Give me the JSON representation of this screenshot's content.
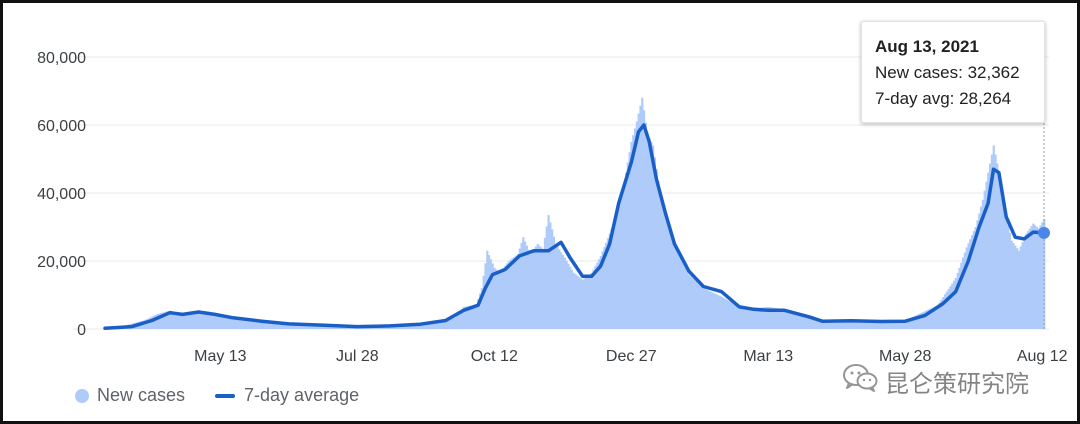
{
  "chart_data": {
    "type": "bar+line",
    "title": "",
    "xlabel": "",
    "ylabel": "",
    "ylim": [
      0,
      90000
    ],
    "y_ticks": [
      0,
      20000,
      40000,
      60000,
      80000
    ],
    "y_tick_labels": [
      "0",
      "20,000",
      "40,000",
      "60,000",
      "80,000"
    ],
    "x_range": [
      "2020-03-10",
      "2021-08-13"
    ],
    "x_ticks": [
      {
        "date": "2020-05-13",
        "label": "May 13"
      },
      {
        "date": "2020-07-28",
        "label": "Jul 28"
      },
      {
        "date": "2020-10-12",
        "label": "Oct 12"
      },
      {
        "date": "2020-12-27",
        "label": "Dec 27"
      },
      {
        "date": "2021-03-13",
        "label": "Mar 13"
      },
      {
        "date": "2021-05-28",
        "label": "May 28"
      },
      {
        "date": "2021-08-12",
        "label": "Aug 12"
      }
    ],
    "grid": true,
    "legend_position": "bottom-left",
    "series": [
      {
        "name": "New cases",
        "kind": "bar",
        "color": "#aecbfa",
        "points": [
          [
            "2020-03-10",
            400
          ],
          [
            "2020-03-20",
            900
          ],
          [
            "2020-04-01",
            2600
          ],
          [
            "2020-04-08",
            4400
          ],
          [
            "2020-04-15",
            5400
          ],
          [
            "2020-04-22",
            4500
          ],
          [
            "2020-05-01",
            5200
          ],
          [
            "2020-05-08",
            4300
          ],
          [
            "2020-05-20",
            3100
          ],
          [
            "2020-06-01",
            2300
          ],
          [
            "2020-06-15",
            1500
          ],
          [
            "2020-07-01",
            1200
          ],
          [
            "2020-07-20",
            500
          ],
          [
            "2020-08-01",
            900
          ],
          [
            "2020-08-20",
            1100
          ],
          [
            "2020-09-05",
            1500
          ],
          [
            "2020-09-20",
            3300
          ],
          [
            "2020-09-25",
            6500
          ],
          [
            "2020-10-02",
            7200
          ],
          [
            "2020-10-05",
            12000
          ],
          [
            "2020-10-08",
            23000
          ],
          [
            "2020-10-12",
            18000
          ],
          [
            "2020-10-15",
            16500
          ],
          [
            "2020-10-20",
            20000
          ],
          [
            "2020-10-25",
            22000
          ],
          [
            "2020-10-28",
            27000
          ],
          [
            "2020-11-01",
            22000
          ],
          [
            "2020-11-05",
            25000
          ],
          [
            "2020-11-08",
            23500
          ],
          [
            "2020-11-11",
            33500
          ],
          [
            "2020-11-15",
            25000
          ],
          [
            "2020-11-20",
            21000
          ],
          [
            "2020-11-25",
            16500
          ],
          [
            "2020-11-30",
            14500
          ],
          [
            "2020-12-05",
            16500
          ],
          [
            "2020-12-10",
            21500
          ],
          [
            "2020-12-15",
            28000
          ],
          [
            "2020-12-19",
            34000
          ],
          [
            "2020-12-23",
            43000
          ],
          [
            "2020-12-27",
            55000
          ],
          [
            "2020-12-30",
            61000
          ],
          [
            "2021-01-02",
            68000
          ],
          [
            "2021-01-05",
            57000
          ],
          [
            "2021-01-08",
            54000
          ],
          [
            "2021-01-12",
            40000
          ],
          [
            "2021-01-17",
            30000
          ],
          [
            "2021-01-22",
            22000
          ],
          [
            "2021-01-28",
            16000
          ],
          [
            "2021-02-05",
            12000
          ],
          [
            "2021-02-15",
            9500
          ],
          [
            "2021-02-25",
            6500
          ],
          [
            "2021-03-05",
            6000
          ],
          [
            "2021-03-13",
            6500
          ],
          [
            "2021-03-25",
            5500
          ],
          [
            "2021-04-05",
            4000
          ],
          [
            "2021-04-12",
            2500
          ],
          [
            "2021-04-25",
            2800
          ],
          [
            "2021-05-10",
            2400
          ],
          [
            "2021-05-28",
            2500
          ],
          [
            "2021-06-05",
            4500
          ],
          [
            "2021-06-15",
            7000
          ],
          [
            "2021-06-25",
            15000
          ],
          [
            "2021-07-01",
            24000
          ],
          [
            "2021-07-06",
            30000
          ],
          [
            "2021-07-10",
            38000
          ],
          [
            "2021-07-13",
            46000
          ],
          [
            "2021-07-16",
            54000
          ],
          [
            "2021-07-19",
            46000
          ],
          [
            "2021-07-22",
            35000
          ],
          [
            "2021-07-26",
            26000
          ],
          [
            "2021-07-30",
            23000
          ],
          [
            "2021-08-03",
            28000
          ],
          [
            "2021-08-07",
            31000
          ],
          [
            "2021-08-10",
            29500
          ],
          [
            "2021-08-13",
            32362
          ]
        ]
      },
      {
        "name": "7-day average",
        "kind": "line",
        "color": "#1a5fc8",
        "points": [
          [
            "2020-03-10",
            200
          ],
          [
            "2020-03-25",
            700
          ],
          [
            "2020-04-05",
            2500
          ],
          [
            "2020-04-15",
            4800
          ],
          [
            "2020-04-22",
            4300
          ],
          [
            "2020-05-01",
            5000
          ],
          [
            "2020-05-10",
            4300
          ],
          [
            "2020-05-20",
            3300
          ],
          [
            "2020-06-05",
            2300
          ],
          [
            "2020-06-20",
            1500
          ],
          [
            "2020-07-10",
            1100
          ],
          [
            "2020-07-28",
            700
          ],
          [
            "2020-08-15",
            900
          ],
          [
            "2020-09-01",
            1400
          ],
          [
            "2020-09-15",
            2500
          ],
          [
            "2020-09-25",
            5500
          ],
          [
            "2020-10-03",
            7000
          ],
          [
            "2020-10-07",
            12000
          ],
          [
            "2020-10-11",
            16000
          ],
          [
            "2020-10-18",
            17500
          ],
          [
            "2020-10-26",
            21500
          ],
          [
            "2020-11-03",
            23000
          ],
          [
            "2020-11-11",
            23000
          ],
          [
            "2020-11-18",
            25500
          ],
          [
            "2020-11-23",
            21000
          ],
          [
            "2020-11-30",
            15500
          ],
          [
            "2020-12-05",
            15500
          ],
          [
            "2020-12-10",
            18500
          ],
          [
            "2020-12-15",
            25000
          ],
          [
            "2020-12-20",
            37000
          ],
          [
            "2020-12-27",
            49000
          ],
          [
            "2020-12-31",
            58000
          ],
          [
            "2021-01-03",
            60000
          ],
          [
            "2021-01-06",
            55000
          ],
          [
            "2021-01-10",
            44000
          ],
          [
            "2021-01-15",
            34000
          ],
          [
            "2021-01-20",
            25000
          ],
          [
            "2021-01-28",
            17000
          ],
          [
            "2021-02-05",
            12500
          ],
          [
            "2021-02-15",
            11000
          ],
          [
            "2021-02-25",
            6500
          ],
          [
            "2021-03-05",
            5800
          ],
          [
            "2021-03-13",
            5500
          ],
          [
            "2021-03-22",
            5500
          ],
          [
            "2021-04-05",
            3500
          ],
          [
            "2021-04-12",
            2300
          ],
          [
            "2021-04-28",
            2400
          ],
          [
            "2021-05-15",
            2200
          ],
          [
            "2021-05-28",
            2300
          ],
          [
            "2021-06-08",
            4000
          ],
          [
            "2021-06-18",
            7500
          ],
          [
            "2021-06-25",
            11000
          ],
          [
            "2021-07-02",
            20000
          ],
          [
            "2021-07-08",
            30000
          ],
          [
            "2021-07-13",
            37000
          ],
          [
            "2021-07-16",
            47000
          ],
          [
            "2021-07-19",
            46000
          ],
          [
            "2021-07-23",
            33000
          ],
          [
            "2021-07-28",
            27000
          ],
          [
            "2021-08-02",
            26500
          ],
          [
            "2021-08-07",
            28500
          ],
          [
            "2021-08-13",
            28264
          ]
        ]
      }
    ],
    "hover": {
      "date": "2021-08-13",
      "date_label": "Aug 13, 2021",
      "new_cases_text": "New cases: 32,362",
      "avg_text": "7-day avg: 28,264",
      "new_cases": 32362,
      "avg": 28264
    }
  },
  "legend": {
    "new_cases_label": "New cases",
    "avg_label": "7-day average"
  },
  "watermark": {
    "text": "昆仑策研究院",
    "logo": "wechat-icon"
  },
  "colors": {
    "bars": "#aecbfa",
    "line": "#1a5fc8",
    "grid": "#e8eaed",
    "hover_dot": "#4a86e8"
  }
}
